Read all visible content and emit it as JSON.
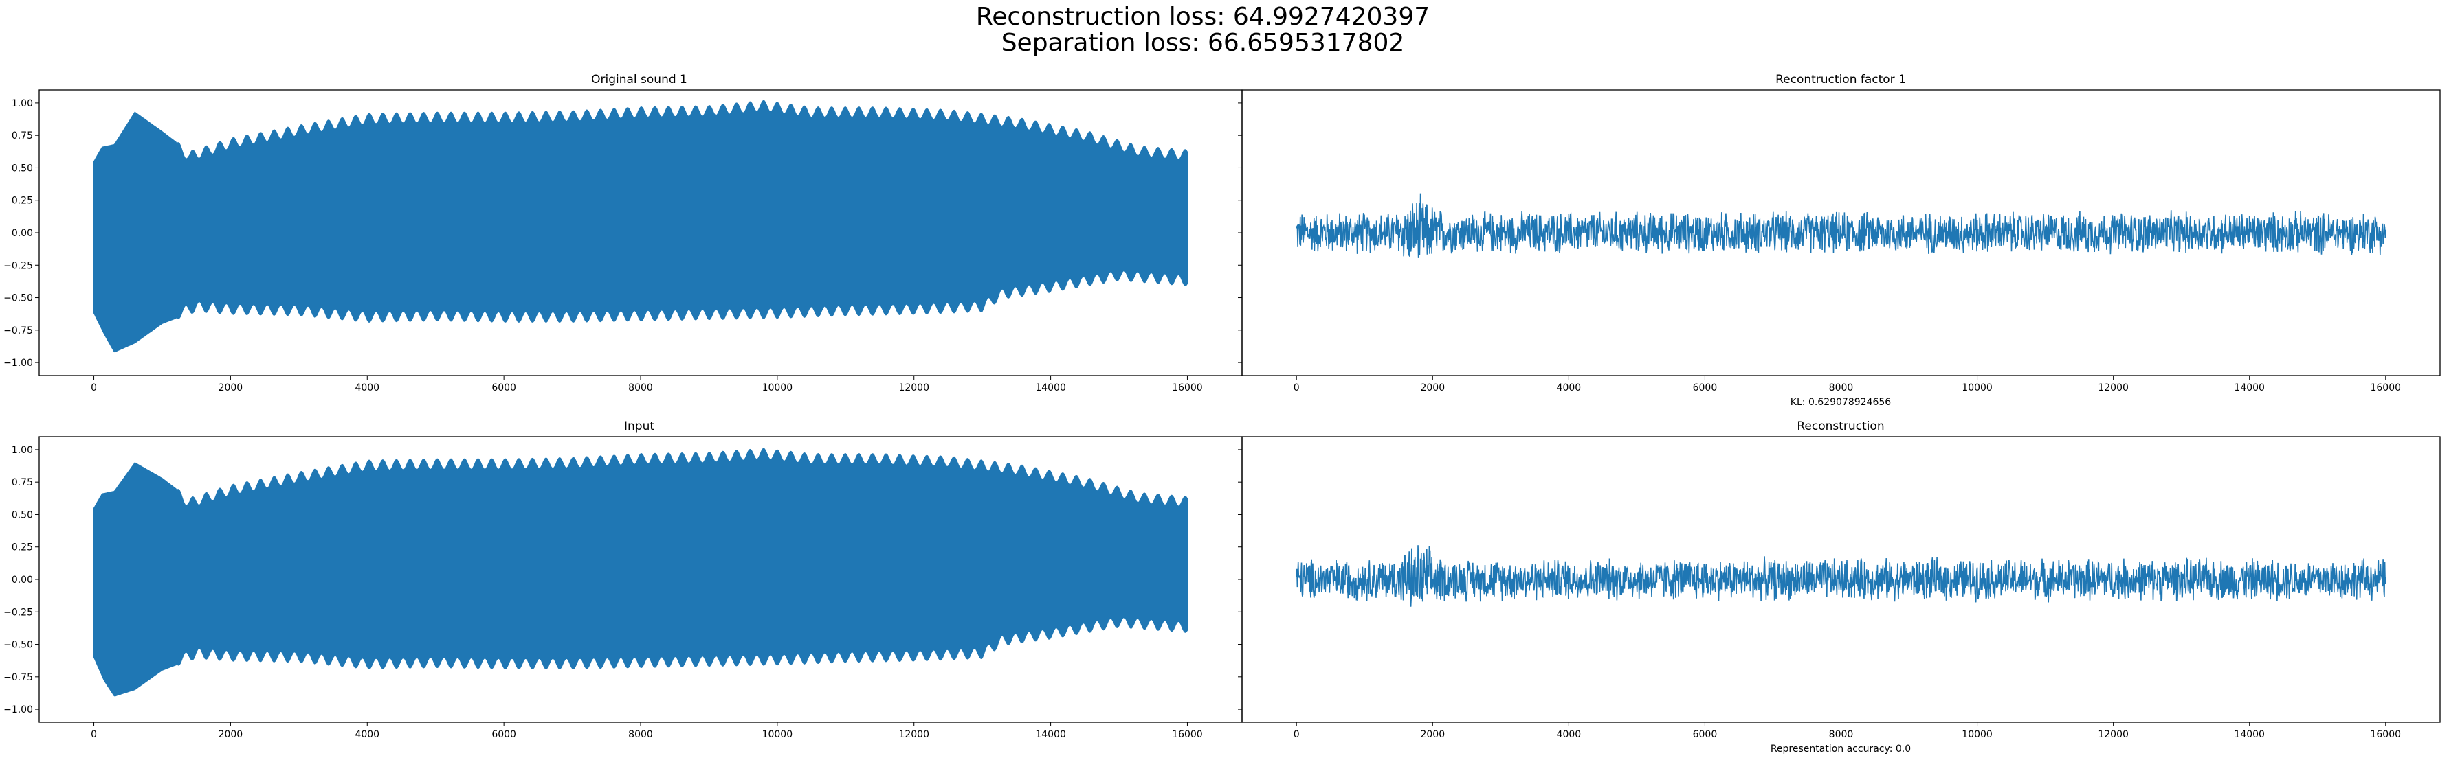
{
  "figure": {
    "suptitle_line1": "Reconstruction loss: 64.9927420397",
    "suptitle_line2": "Separation loss: 66.6595317802",
    "series_color": "#1f77b4"
  },
  "chart_data": [
    {
      "type": "line",
      "title": "Original sound 1",
      "xlabel": "",
      "ylabel": "",
      "xlim": [
        -800,
        16800
      ],
      "ylim": [
        -1.1,
        1.1
      ],
      "xticks": [
        "0",
        "2000",
        "4000",
        "6000",
        "8000",
        "10000",
        "12000",
        "14000",
        "16000"
      ],
      "yticks": [
        "1.00",
        "0.75",
        "0.50",
        "0.25",
        "0.00",
        "−0.25",
        "−0.50",
        "−0.75",
        "−1.00"
      ],
      "grid": false,
      "x_range": [
        0,
        16000
      ],
      "upper_envelope": [
        [
          0,
          0.55
        ],
        [
          120,
          0.66
        ],
        [
          300,
          0.68
        ],
        [
          600,
          0.93
        ],
        [
          1000,
          0.78
        ],
        [
          1400,
          0.62
        ],
        [
          2000,
          0.72
        ],
        [
          3000,
          0.82
        ],
        [
          4000,
          0.91
        ],
        [
          5000,
          0.92
        ],
        [
          6000,
          0.92
        ],
        [
          7000,
          0.93
        ],
        [
          8000,
          0.96
        ],
        [
          9000,
          0.97
        ],
        [
          9800,
          1.01
        ],
        [
          10500,
          0.96
        ],
        [
          11500,
          0.96
        ],
        [
          12500,
          0.94
        ],
        [
          13500,
          0.88
        ],
        [
          14500,
          0.78
        ],
        [
          15300,
          0.66
        ],
        [
          16000,
          0.63
        ]
      ],
      "lower_envelope": [
        [
          0,
          -0.62
        ],
        [
          150,
          -0.78
        ],
        [
          300,
          -0.92
        ],
        [
          600,
          -0.85
        ],
        [
          1000,
          -0.7
        ],
        [
          1500,
          -0.6
        ],
        [
          2000,
          -0.62
        ],
        [
          3000,
          -0.63
        ],
        [
          4000,
          -0.68
        ],
        [
          5000,
          -0.67
        ],
        [
          6000,
          -0.68
        ],
        [
          7000,
          -0.68
        ],
        [
          8000,
          -0.67
        ],
        [
          9000,
          -0.66
        ],
        [
          10000,
          -0.65
        ],
        [
          11000,
          -0.63
        ],
        [
          12000,
          -0.62
        ],
        [
          13000,
          -0.6
        ],
        [
          13300,
          -0.5
        ],
        [
          14000,
          -0.45
        ],
        [
          15000,
          -0.36
        ],
        [
          16000,
          -0.4
        ]
      ],
      "noise_amplitude": null
    },
    {
      "type": "line",
      "title": "Recontruction factor 1",
      "xlabel": "KL: 0.629078924656",
      "ylabel": "",
      "xlim": [
        -800,
        16800
      ],
      "ylim": [
        -1.1,
        1.1
      ],
      "xticks": [
        "0",
        "2000",
        "4000",
        "6000",
        "8000",
        "10000",
        "12000",
        "14000",
        "16000"
      ],
      "yticks": [],
      "grid": false,
      "x_range": [
        0,
        16000
      ],
      "upper_envelope": null,
      "lower_envelope": null,
      "noise_amplitude": 0.18,
      "noise_peak": 0.36,
      "noise_peak_x": 1800
    },
    {
      "type": "line",
      "title": "Input",
      "xlabel": "",
      "ylabel": "",
      "xlim": [
        -800,
        16800
      ],
      "ylim": [
        -1.1,
        1.1
      ],
      "xticks": [
        "0",
        "2000",
        "4000",
        "6000",
        "8000",
        "10000",
        "12000",
        "14000",
        "16000"
      ],
      "yticks": [
        "1.00",
        "0.75",
        "0.50",
        "0.25",
        "0.00",
        "−0.25",
        "−0.50",
        "−0.75",
        "−1.00"
      ],
      "grid": false,
      "x_range": [
        0,
        16000
      ],
      "upper_envelope": [
        [
          0,
          0.55
        ],
        [
          120,
          0.66
        ],
        [
          300,
          0.68
        ],
        [
          600,
          0.9
        ],
        [
          1000,
          0.78
        ],
        [
          1400,
          0.62
        ],
        [
          2000,
          0.72
        ],
        [
          3000,
          0.82
        ],
        [
          4000,
          0.91
        ],
        [
          5000,
          0.92
        ],
        [
          6000,
          0.92
        ],
        [
          7000,
          0.93
        ],
        [
          8000,
          0.96
        ],
        [
          9000,
          0.97
        ],
        [
          9800,
          1.0
        ],
        [
          10500,
          0.96
        ],
        [
          11500,
          0.96
        ],
        [
          12500,
          0.94
        ],
        [
          13500,
          0.88
        ],
        [
          14500,
          0.78
        ],
        [
          15300,
          0.66
        ],
        [
          16000,
          0.63
        ]
      ],
      "lower_envelope": [
        [
          0,
          -0.6
        ],
        [
          150,
          -0.78
        ],
        [
          300,
          -0.9
        ],
        [
          600,
          -0.85
        ],
        [
          1000,
          -0.7
        ],
        [
          1500,
          -0.6
        ],
        [
          2000,
          -0.62
        ],
        [
          3000,
          -0.63
        ],
        [
          4000,
          -0.68
        ],
        [
          5000,
          -0.67
        ],
        [
          6000,
          -0.68
        ],
        [
          7000,
          -0.68
        ],
        [
          8000,
          -0.67
        ],
        [
          9000,
          -0.66
        ],
        [
          10000,
          -0.65
        ],
        [
          11000,
          -0.63
        ],
        [
          12000,
          -0.62
        ],
        [
          13000,
          -0.6
        ],
        [
          13300,
          -0.5
        ],
        [
          14000,
          -0.45
        ],
        [
          15000,
          -0.36
        ],
        [
          16000,
          -0.4
        ]
      ],
      "noise_amplitude": null
    },
    {
      "type": "line",
      "title": "Reconstruction",
      "xlabel": "Representation accuracy: 0.0",
      "ylabel": "",
      "xlim": [
        -800,
        16800
      ],
      "ylim": [
        -1.1,
        1.1
      ],
      "xticks": [
        "0",
        "2000",
        "4000",
        "6000",
        "8000",
        "10000",
        "12000",
        "14000",
        "16000"
      ],
      "yticks": [],
      "grid": false,
      "x_range": [
        0,
        16000
      ],
      "upper_envelope": null,
      "lower_envelope": null,
      "noise_amplitude": 0.18,
      "noise_peak": 0.36,
      "noise_peak_x": 1800
    }
  ]
}
